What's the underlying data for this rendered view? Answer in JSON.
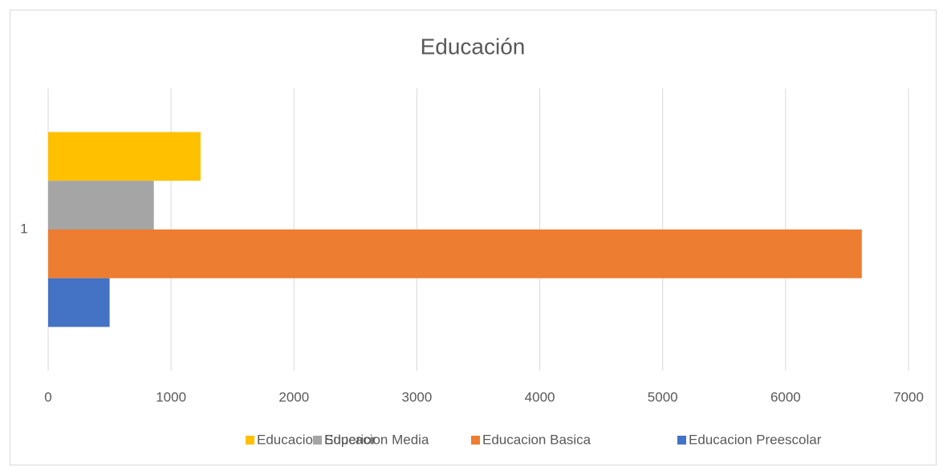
{
  "chart_data": {
    "type": "bar",
    "orientation": "horizontal",
    "title": "Educación",
    "categories": [
      "1"
    ],
    "series": [
      {
        "name": "Educacion Superior",
        "color": "#FFC000",
        "values": [
          1240
        ]
      },
      {
        "name": "Educacion Media",
        "color": "#A5A5A5",
        "values": [
          860
        ]
      },
      {
        "name": "Educacion Basica",
        "color": "#ED7D31",
        "values": [
          6620
        ]
      },
      {
        "name": "Educacion Preescolar",
        "color": "#4472C4",
        "values": [
          500
        ]
      }
    ],
    "xlim": [
      0,
      7000
    ],
    "xticks": [
      0,
      1000,
      2000,
      3000,
      4000,
      5000,
      6000,
      7000
    ],
    "grid": true,
    "legend": "bottom"
  }
}
